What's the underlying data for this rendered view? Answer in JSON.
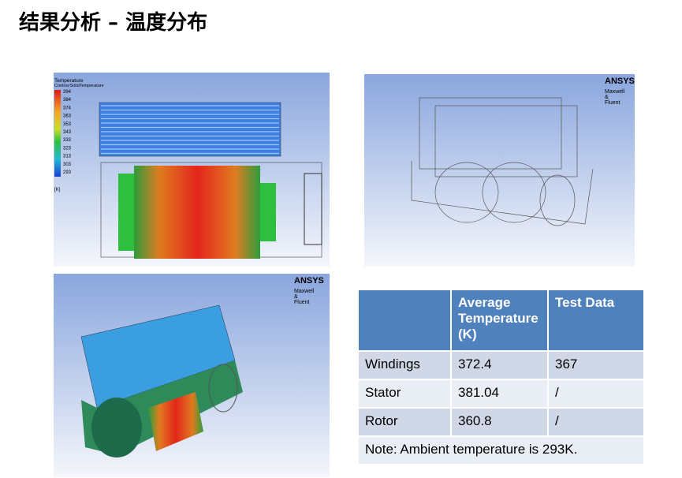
{
  "header": {
    "title": "结果分析 – 温度分布"
  },
  "figures": [
    {
      "legend": {
        "title": "Temperature",
        "subtitle": "ContourSolidTemperature",
        "ticks": [
          394,
          384,
          374,
          363,
          353,
          343,
          333,
          323,
          313,
          303,
          293
        ],
        "unit": "[K]"
      }
    },
    {
      "logo": "ANSYS",
      "caption": [
        "Maxwell",
        "&",
        "Fluent"
      ]
    },
    {
      "logo": "ANSYS",
      "caption": [
        "Maxwell",
        "&",
        "Fluent"
      ]
    }
  ],
  "table": {
    "header": [
      "Average Temperature (K)",
      "Test Data"
    ],
    "rows": [
      [
        "Windings",
        "372.4",
        "367"
      ],
      [
        "Stator",
        "381.04",
        "/"
      ],
      [
        "Rotor",
        "360.8",
        "/"
      ]
    ],
    "note": "Note: Ambient temperature is 293K."
  }
}
